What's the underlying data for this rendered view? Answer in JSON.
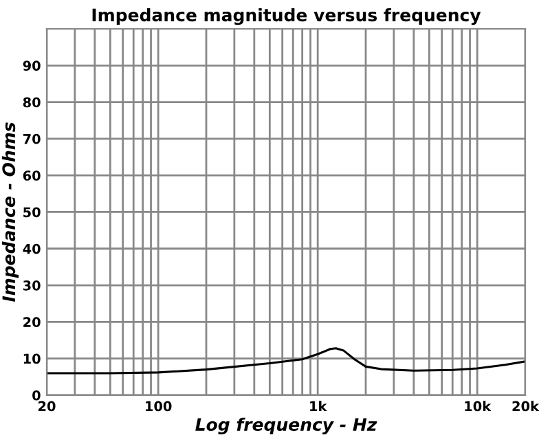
{
  "chart_data": {
    "type": "line",
    "title": "Impedance magnitude versus frequency",
    "xlabel": "Log frequency - Hz",
    "ylabel": "Impedance - Ohms",
    "log": "x",
    "grid": true,
    "marker": "none",
    "line_style": "solid",
    "x": [
      20,
      50,
      100,
      200,
      500,
      800,
      1000,
      1200,
      1300,
      1450,
      1700,
      2000,
      2500,
      4000,
      7000,
      10000,
      15000,
      20000
    ],
    "series": [
      {
        "color": "#000000",
        "values": [
          6,
          6,
          6.2,
          7,
          8.7,
          9.8,
          11.2,
          12.6,
          12.8,
          12.2,
          9.8,
          7.8,
          7.1,
          6.7,
          6.9,
          7.3,
          8.3,
          9.2
        ]
      }
    ],
    "xlim": [
      20,
      20000
    ],
    "ylim": [
      0,
      100
    ],
    "xticks": [
      20,
      {
        "value": 30,
        "label": null
      },
      {
        "value": 40,
        "label": null
      },
      {
        "value": 50,
        "label": null
      },
      {
        "value": 60,
        "label": null
      },
      {
        "value": 70,
        "label": null
      },
      {
        "value": 80,
        "label": null
      },
      {
        "value": 90,
        "label": null
      },
      100,
      {
        "value": 200,
        "label": null
      },
      {
        "value": 300,
        "label": null
      },
      {
        "value": 400,
        "label": null
      },
      {
        "value": 500,
        "label": null
      },
      {
        "value": 600,
        "label": null
      },
      {
        "value": 700,
        "label": null
      },
      {
        "value": 800,
        "label": null
      },
      {
        "value": 900,
        "label": null
      },
      {
        "value": 1000,
        "label": "1k"
      },
      {
        "value": 2000,
        "label": null
      },
      {
        "value": 3000,
        "label": null
      },
      {
        "value": 4000,
        "label": null
      },
      {
        "value": 5000,
        "label": null
      },
      {
        "value": 6000,
        "label": null
      },
      {
        "value": 7000,
        "label": null
      },
      {
        "value": 8000,
        "label": null
      },
      {
        "value": 9000,
        "label": null
      },
      {
        "value": 10000,
        "label": "10k"
      },
      {
        "value": 20000,
        "label": "20k"
      }
    ],
    "yticks": [
      0,
      10,
      20,
      30,
      40,
      50,
      60,
      70,
      80,
      90
    ]
  }
}
